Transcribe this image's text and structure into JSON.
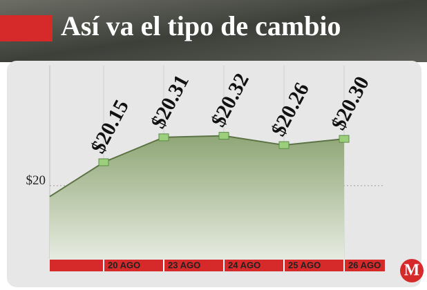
{
  "chart_data": {
    "type": "area",
    "title": "Así va el tipo de cambio",
    "categories": [
      null,
      "20 AGO",
      "23 AGO",
      "24 AGO",
      "25 AGO",
      "26 AGO"
    ],
    "values": [
      19.93,
      20.15,
      20.31,
      20.32,
      20.26,
      20.3
    ],
    "value_labels": [
      null,
      "$20.15",
      "$20.31",
      "$20.32",
      "$20.26",
      "$20.30"
    ],
    "color": "#6f8a55",
    "ylim": [
      19.53,
      20.77
    ],
    "yticks": [
      {
        "value": 20,
        "label": "$20"
      }
    ],
    "grid": true,
    "logo": "M"
  }
}
